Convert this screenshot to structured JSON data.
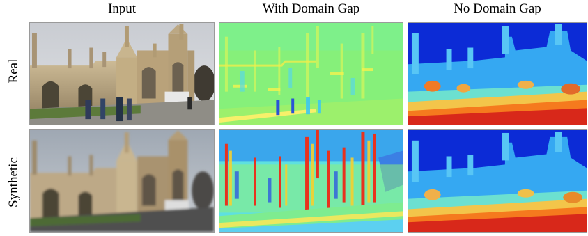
{
  "columns": [
    "Input",
    "With Domain Gap",
    "No Domain Gap"
  ],
  "rows": [
    "Real",
    "Synthetic"
  ],
  "panels": {
    "input_real": "photo of King's College Chapel with pedestrians",
    "input_synthetic": "blurred synthetic render of King's College Chapel",
    "gap_real": "rainbow colormap feature map, mostly green-yellow",
    "gap_synthetic": "rainbow colormap feature map with red vertical edges",
    "nogap_real": "rainbow colormap depth-like map, blue sky, red ground",
    "nogap_synthetic": "rainbow colormap depth-like map, blue sky, red ground"
  }
}
